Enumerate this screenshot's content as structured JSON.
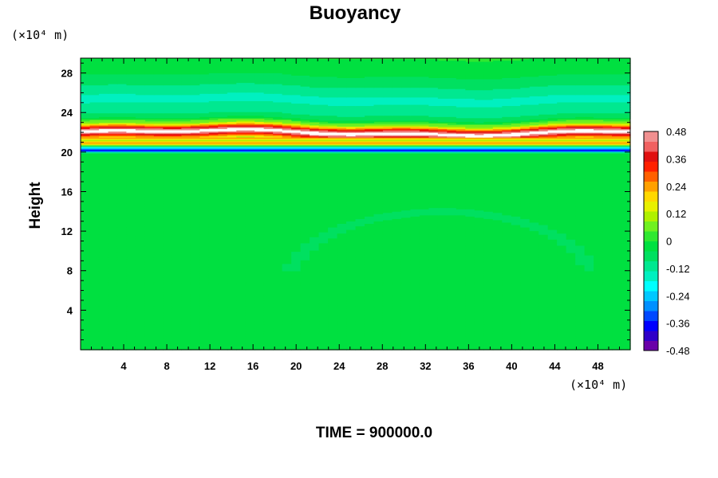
{
  "chart_data": {
    "type": "heatmap",
    "title": "Buoyancy",
    "ylabel": "Height",
    "x_unit_label": "(×10⁴ m)",
    "y_unit_label": "(×10⁴ m)",
    "footer": "TIME = 900000.0",
    "xlim": [
      0,
      51
    ],
    "ylim": [
      0,
      29.5
    ],
    "x_ticks": [
      "4",
      "8",
      "12",
      "16",
      "20",
      "24",
      "28",
      "32",
      "36",
      "40",
      "44",
      "48"
    ],
    "x_tick_values": [
      4,
      8,
      12,
      16,
      20,
      24,
      28,
      32,
      36,
      40,
      44,
      48
    ],
    "y_ticks": [
      "4",
      "8",
      "12",
      "16",
      "20",
      "24",
      "28"
    ],
    "y_tick_values": [
      4,
      8,
      12,
      16,
      20,
      24,
      28
    ],
    "colorbar": {
      "min": -0.48,
      "max": 0.48,
      "labels": [
        "0.48",
        "0.36",
        "0.24",
        "0.12",
        "0",
        "-0.12",
        "-0.24",
        "-0.36",
        "-0.48"
      ],
      "label_values": [
        0.48,
        0.36,
        0.24,
        0.12,
        0,
        -0.12,
        -0.24,
        -0.36,
        -0.48
      ],
      "colors": [
        "#6a00a8",
        "#3000c8",
        "#0000ff",
        "#0048ff",
        "#0090ff",
        "#00c8ff",
        "#00ffff",
        "#00f0c0",
        "#00e890",
        "#00e060",
        "#00e040",
        "#30e830",
        "#70f020",
        "#b0f000",
        "#e8f000",
        "#ffd800",
        "#ffa000",
        "#ff6000",
        "#ff2000",
        "#e01010",
        "#f06060",
        "#f09090"
      ]
    },
    "vertical_profile": {
      "height": [
        0,
        19.9,
        20.2,
        20.6,
        20.9,
        21.2,
        22.0,
        22.4,
        22.8,
        23.4,
        24.2,
        25.5,
        27.5,
        29.5
      ],
      "value": [
        0.0,
        -0.04,
        -0.4,
        -0.1,
        0.3,
        0.1,
        0.55,
        0.35,
        0.1,
        -0.05,
        -0.12,
        -0.14,
        -0.05,
        0.0
      ]
    }
  }
}
